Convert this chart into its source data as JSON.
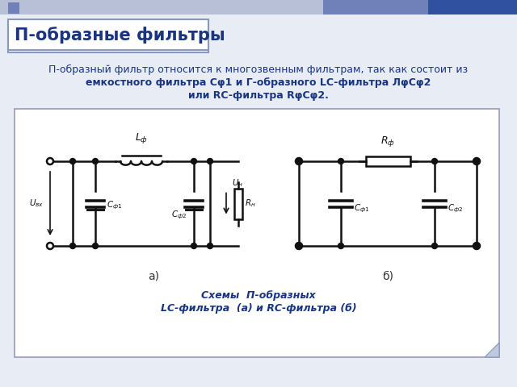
{
  "title": "П-образные фильтры",
  "body_line1": "П-образный фильтр относится к многозвенным фильтрам, так как состоит из",
  "body_line2": "емкостного фильтра Сφ1 и Г-образного LC-фильтра ЛφСφ2",
  "body_line3": "или RC-фильтра RφСφ2.",
  "caption1": "Схемы  П-образных",
  "caption2": "LC-фильтра  (а) и RC-фильтра (б)",
  "label_a": "а)",
  "label_b": "б)",
  "bg_color": "#e8ecf5",
  "title_bg": "#ffffff",
  "title_color": "#1a3580",
  "body_color": "#1a3580",
  "panel_bg": "#ffffff",
  "panel_border": "#9999bb",
  "dc": "#111111",
  "caption_color": "#1a3580",
  "top_stripe1": "#7080b8",
  "top_stripe2": "#3050a0",
  "top_bar": "#b8c0d8",
  "sq_color": "#7080b8"
}
